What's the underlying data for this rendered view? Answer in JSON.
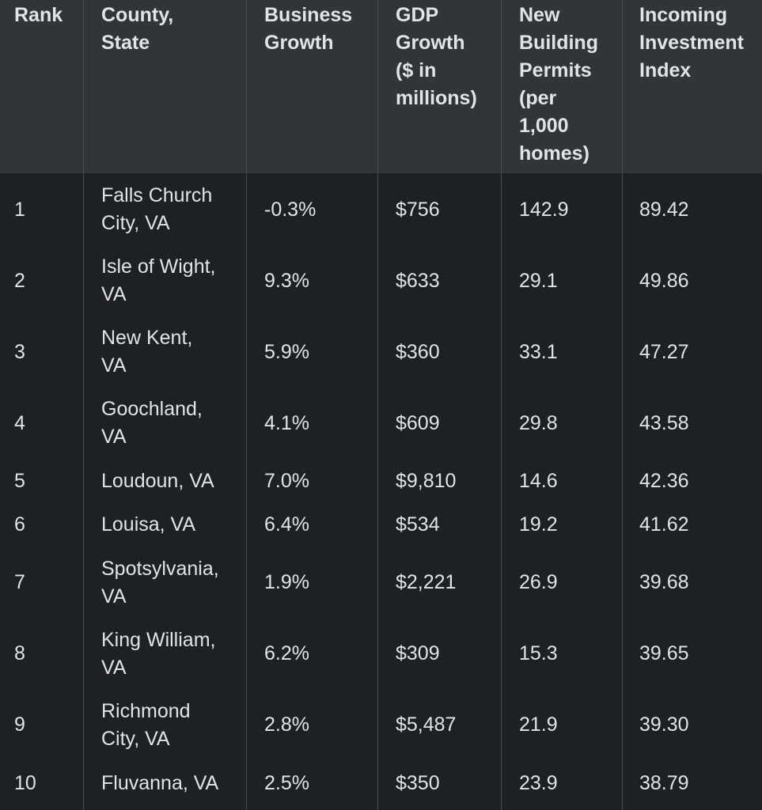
{
  "table": {
    "headers": {
      "rank": "Rank",
      "county": [
        "County,",
        "State"
      ],
      "business": [
        "Business",
        "Growth"
      ],
      "gdp": [
        "GDP",
        "Growth",
        "($ in",
        "millions)"
      ],
      "permits": [
        "New",
        "Building",
        "Permits",
        "(per",
        "1,000",
        "homes)"
      ],
      "investment": [
        "Incoming",
        "Investment",
        "Index"
      ]
    },
    "rows": [
      {
        "rank": "1",
        "county": [
          "Falls Church",
          "City, VA"
        ],
        "business": "-0.3%",
        "gdp": "$756",
        "permits": "142.9",
        "investment": "89.42"
      },
      {
        "rank": "2",
        "county": [
          "Isle of Wight,",
          "VA"
        ],
        "business": "9.3%",
        "gdp": "$633",
        "permits": "29.1",
        "investment": "49.86"
      },
      {
        "rank": "3",
        "county": [
          "New Kent,",
          "VA"
        ],
        "business": "5.9%",
        "gdp": "$360",
        "permits": "33.1",
        "investment": "47.27"
      },
      {
        "rank": "4",
        "county": [
          "Goochland,",
          "VA"
        ],
        "business": "4.1%",
        "gdp": "$609",
        "permits": "29.8",
        "investment": "43.58"
      },
      {
        "rank": "5",
        "county": [
          "Loudoun, VA"
        ],
        "business": "7.0%",
        "gdp": "$9,810",
        "permits": "14.6",
        "investment": "42.36"
      },
      {
        "rank": "6",
        "county": [
          "Louisa, VA"
        ],
        "business": "6.4%",
        "gdp": "$534",
        "permits": "19.2",
        "investment": "41.62"
      },
      {
        "rank": "7",
        "county": [
          "Spotsylvania,",
          "VA"
        ],
        "business": "1.9%",
        "gdp": "$2,221",
        "permits": "26.9",
        "investment": "39.68"
      },
      {
        "rank": "8",
        "county": [
          "King William,",
          "VA"
        ],
        "business": "6.2%",
        "gdp": "$309",
        "permits": "15.3",
        "investment": "39.65"
      },
      {
        "rank": "9",
        "county": [
          "Richmond",
          "City, VA"
        ],
        "business": "2.8%",
        "gdp": "$5,487",
        "permits": "21.9",
        "investment": "39.30"
      },
      {
        "rank": "10",
        "county": [
          "Fluvanna, VA"
        ],
        "business": "2.5%",
        "gdp": "$350",
        "permits": "23.9",
        "investment": "38.79"
      }
    ]
  }
}
